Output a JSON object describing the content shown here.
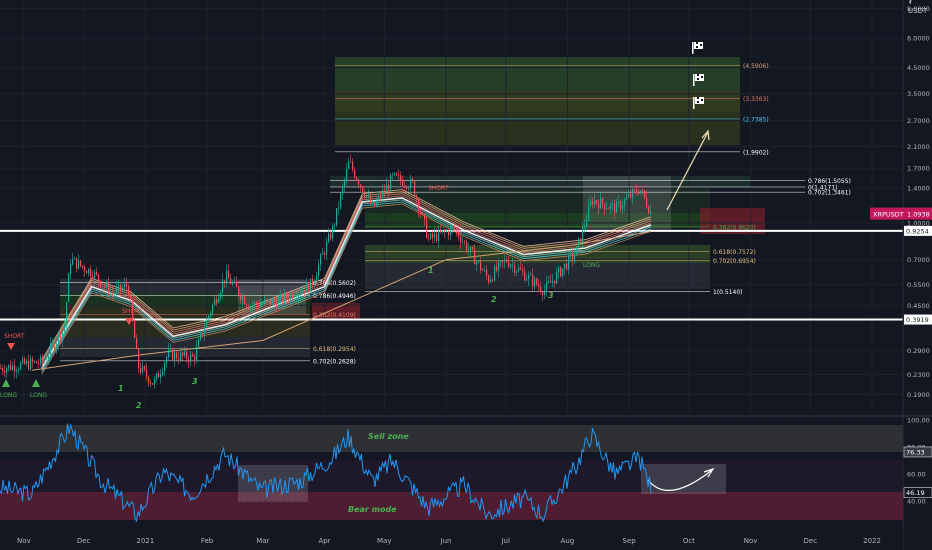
{
  "chart_data": [
    {
      "type": "candlestick",
      "symbol": "XRPUSDT",
      "currency_label": "USDT",
      "last_price": "1.0938",
      "scale": "log",
      "ylim": [
        0.16,
        8.5
      ],
      "x_ticks": [
        "Nov",
        "Dec",
        "2021",
        "Feb",
        "Mar",
        "Apr",
        "May",
        "Jun",
        "Jul",
        "Aug",
        "Sep",
        "Oct",
        "Nov",
        "Dec",
        "2022"
      ],
      "y_ticks": [
        "8.0000",
        "6.0000",
        "4.5000",
        "3.5000",
        "2.7000",
        "2.1000",
        "1.7000",
        "1.4000",
        "1.0000",
        "0.7000",
        "0.5500",
        "0.4500",
        "0.2900",
        "0.2300",
        "0.1900"
      ],
      "price_path": [
        {
          "date": "2020-10-20",
          "price": 0.245
        },
        {
          "date": "2020-11-10",
          "price": 0.26
        },
        {
          "date": "2020-11-21",
          "price": 0.36
        },
        {
          "date": "2020-11-24",
          "price": 0.7
        },
        {
          "date": "2020-12-05",
          "price": 0.62
        },
        {
          "date": "2020-12-15",
          "price": 0.5
        },
        {
          "date": "2020-12-23",
          "price": 0.55
        },
        {
          "date": "2020-12-28",
          "price": 0.25
        },
        {
          "date": "2021-01-05",
          "price": 0.21
        },
        {
          "date": "2021-01-12",
          "price": 0.28
        },
        {
          "date": "2021-01-25",
          "price": 0.27
        },
        {
          "date": "2021-02-01",
          "price": 0.4
        },
        {
          "date": "2021-02-10",
          "price": 0.6
        },
        {
          "date": "2021-02-22",
          "price": 0.45
        },
        {
          "date": "2021-03-10",
          "price": 0.47
        },
        {
          "date": "2021-03-25",
          "price": 0.55
        },
        {
          "date": "2021-04-05",
          "price": 0.95
        },
        {
          "date": "2021-04-13",
          "price": 1.8
        },
        {
          "date": "2021-04-25",
          "price": 1.15
        },
        {
          "date": "2021-05-05",
          "price": 1.55
        },
        {
          "date": "2021-05-15",
          "price": 1.45
        },
        {
          "date": "2021-05-23",
          "price": 0.85
        },
        {
          "date": "2021-06-05",
          "price": 0.95
        },
        {
          "date": "2021-06-22",
          "price": 0.58
        },
        {
          "date": "2021-07-01",
          "price": 0.7
        },
        {
          "date": "2021-07-20",
          "price": 0.52
        },
        {
          "date": "2021-08-05",
          "price": 0.75
        },
        {
          "date": "2021-08-13",
          "price": 1.25
        },
        {
          "date": "2021-08-25",
          "price": 1.15
        },
        {
          "date": "2021-09-06",
          "price": 1.4
        },
        {
          "date": "2021-09-12",
          "price": 1.09
        }
      ],
      "ribbon": [
        {
          "date": "2020-11-10",
          "price": 0.25
        },
        {
          "date": "2020-12-05",
          "price": 0.55
        },
        {
          "date": "2020-12-25",
          "price": 0.48
        },
        {
          "date": "2021-01-15",
          "price": 0.34
        },
        {
          "date": "2021-02-10",
          "price": 0.38
        },
        {
          "date": "2021-03-05",
          "price": 0.45
        },
        {
          "date": "2021-04-01",
          "price": 0.55
        },
        {
          "date": "2021-04-20",
          "price": 1.25
        },
        {
          "date": "2021-05-10",
          "price": 1.3
        },
        {
          "date": "2021-06-10",
          "price": 0.95
        },
        {
          "date": "2021-07-10",
          "price": 0.75
        },
        {
          "date": "2021-08-10",
          "price": 0.8
        },
        {
          "date": "2021-09-12",
          "price": 1.0
        }
      ],
      "horizontal_levels": [
        {
          "label": "0.9254",
          "value": 0.9254
        },
        {
          "label": "0.3919",
          "value": 0.3919
        }
      ],
      "fib_levels": [
        {
          "label": "(4.5906)",
          "value": 4.5906
        },
        {
          "label": "(3.3363)",
          "value": 3.3363
        },
        {
          "label": "(2.7385)",
          "value": 2.7385
        },
        {
          "label": "(1.9902)",
          "value": 1.9902
        },
        {
          "label": "0.786(1.5055)",
          "value": 1.5055
        },
        {
          "label": "0(1.4171)",
          "value": 1.4171
        },
        {
          "label": "0.702(1.3461)",
          "value": 1.3461
        },
        {
          "label": "0.382(0.9620)",
          "value": 0.962
        },
        {
          "label": "0.618(0.7572)",
          "value": 0.7572
        },
        {
          "label": "0.702(0.6954)",
          "value": 0.6954
        },
        {
          "label": "1(0.5140)",
          "value": 0.514
        },
        {
          "label": "0.786(0.5602)",
          "value": 0.5602
        },
        {
          "label": "0.786(0.4946)",
          "value": 0.4946
        },
        {
          "label": "0.382(0.4109)",
          "value": 0.4109
        },
        {
          "label": "0.618(0.2954)",
          "value": 0.2954
        },
        {
          "label": "0.702(0.2628)",
          "value": 0.2628
        }
      ],
      "annotations": [
        "SHORT",
        "LONG",
        "LONG",
        "SHORT",
        "SHORT",
        "LONG",
        "1",
        "2",
        "3",
        "1",
        "2",
        "3"
      ]
    },
    {
      "type": "line",
      "name": "RSI",
      "ylim": [
        20,
        100
      ],
      "y_ticks": [
        "100.00",
        "80.00",
        "60.00",
        "40.00"
      ],
      "current_values": [
        "76.33",
        "46.19"
      ],
      "zones": [
        "Sell zone",
        "Bear mode"
      ],
      "series": [
        {
          "date": "2020-10-20",
          "value": 50
        },
        {
          "date": "2020-11-05",
          "value": 45
        },
        {
          "date": "2020-11-24",
          "value": 95
        },
        {
          "date": "2020-12-10",
          "value": 55
        },
        {
          "date": "2020-12-28",
          "value": 30
        },
        {
          "date": "2021-01-10",
          "value": 62
        },
        {
          "date": "2021-01-25",
          "value": 45
        },
        {
          "date": "2021-02-10",
          "value": 75
        },
        {
          "date": "2021-02-28",
          "value": 48
        },
        {
          "date": "2021-03-20",
          "value": 55
        },
        {
          "date": "2021-04-05",
          "value": 72
        },
        {
          "date": "2021-04-13",
          "value": 88
        },
        {
          "date": "2021-04-25",
          "value": 55
        },
        {
          "date": "2021-05-05",
          "value": 70
        },
        {
          "date": "2021-05-23",
          "value": 35
        },
        {
          "date": "2021-06-10",
          "value": 52
        },
        {
          "date": "2021-06-22",
          "value": 30
        },
        {
          "date": "2021-07-10",
          "value": 42
        },
        {
          "date": "2021-07-20",
          "value": 30
        },
        {
          "date": "2021-08-05",
          "value": 65
        },
        {
          "date": "2021-08-13",
          "value": 90
        },
        {
          "date": "2021-08-25",
          "value": 60
        },
        {
          "date": "2021-09-06",
          "value": 72
        },
        {
          "date": "2021-09-12",
          "value": 50
        }
      ]
    }
  ]
}
